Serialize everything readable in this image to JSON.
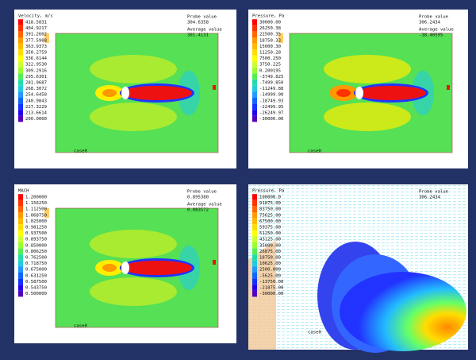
{
  "panels": [
    {
      "legend_title": "Velocity, m/s",
      "legend_labels": [
        "418.5831",
        "404.9217",
        "391.2602",
        "377.5988",
        "363.9373",
        "350.2759",
        "336.6144",
        "322.9530",
        "309.2916",
        "295.6301",
        "281.9687",
        "268.3072",
        "254.6458",
        "240.9843",
        "227.3229",
        "213.6614",
        "200.0000"
      ],
      "probe_label": "Probe value",
      "probe_value": "304.6358",
      "average_label": "Average value",
      "average_value": "301.4131",
      "case_label": "case0"
    },
    {
      "legend_title": "Pressure, Pa",
      "legend_labels": [
        "30000.00",
        "26250.38",
        "22500.35",
        "18750.33",
        "15000.30",
        "11250.28",
        "7500.250",
        "3750.225",
        "0.200195",
        "-3749.825",
        "-7499.850",
        "-11249.88",
        "-14999.90",
        "-18749.93",
        "-22499.95",
        "-26249.97",
        "-30000.00"
      ],
      "probe_label": "Probe value",
      "probe_value": "306.2434",
      "average_label": "Average value",
      "average_value": "-38.40595",
      "case_label": "case0"
    },
    {
      "legend_title": "MACH",
      "legend_labels": [
        "1.200000",
        "1.156250",
        "1.112500",
        "1.068750",
        "1.025000",
        "0.981250",
        "0.937500",
        "0.893750",
        "0.850000",
        "0.806250",
        "0.762500",
        "0.718750",
        "0.675000",
        "0.631250",
        "0.587500",
        "0.543750",
        "0.500000"
      ],
      "probe_label": "Probe value",
      "probe_value": "0.895380",
      "average_label": "Average value",
      "average_value": "0.883572",
      "case_label": "case0"
    },
    {
      "legend_title": "Pressure, Pa",
      "legend_labels": [
        "100000.0",
        "91875.00",
        "83750.00",
        "75625.00",
        "67500.00",
        "59375.00",
        "51250.00",
        "43125.00",
        "35000.00",
        "26875.00",
        "18750.00",
        "10625.00",
        "2500.000",
        "-5625.00",
        "-13750.00",
        "-21875.00",
        "-30000.00"
      ],
      "probe_label": "Probe value",
      "probe_value": "306.2434",
      "case_label": "case0"
    }
  ]
}
